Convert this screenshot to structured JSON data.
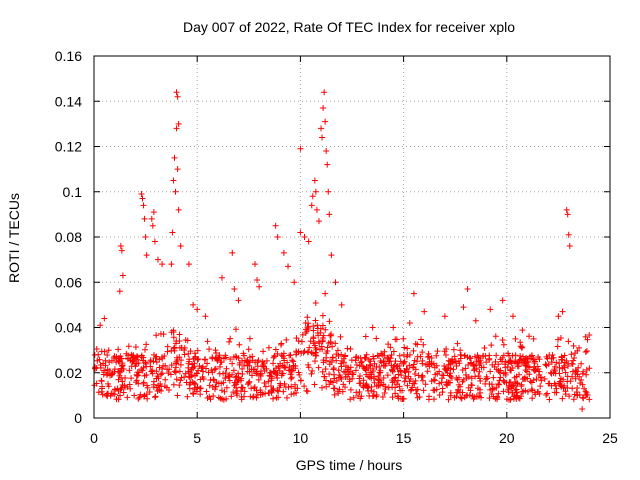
{
  "chart_data": {
    "type": "scatter",
    "title": "Day 007 of 2022, Rate Of TEC Index for receiver xplo",
    "xlabel": "GPS time / hours",
    "ylabel": "ROTI / TECUs",
    "xlim": [
      0,
      25
    ],
    "ylim": [
      0,
      0.16
    ],
    "x_ticks": [
      0,
      5,
      10,
      15,
      20,
      25
    ],
    "x_tick_labels": [
      "0",
      "5",
      "10",
      "15",
      "20",
      "25"
    ],
    "y_ticks": [
      0,
      0.02,
      0.04,
      0.06,
      0.08,
      0.1,
      0.12,
      0.14,
      0.16
    ],
    "y_tick_labels": [
      "0",
      "0.02",
      "0.04",
      "0.06",
      "0.08",
      "0.1",
      "0.12",
      "0.14",
      "0.16"
    ],
    "grid": true,
    "legend": "none",
    "marker": "+",
    "marker_color": "#ff0000",
    "data_x_range": [
      0,
      24
    ],
    "baseline_band": [
      0.008,
      0.028
    ],
    "points": [
      [
        4.0,
        0.144
      ],
      [
        4.05,
        0.142
      ],
      [
        4.1,
        0.13
      ],
      [
        4.0,
        0.128
      ],
      [
        3.9,
        0.115
      ],
      [
        4.05,
        0.11
      ],
      [
        3.85,
        0.105
      ],
      [
        3.95,
        0.1
      ],
      [
        4.1,
        0.092
      ],
      [
        3.8,
        0.082
      ],
      [
        4.2,
        0.076
      ],
      [
        3.75,
        0.068
      ],
      [
        2.3,
        0.099
      ],
      [
        2.35,
        0.097
      ],
      [
        2.4,
        0.094
      ],
      [
        2.45,
        0.088
      ],
      [
        2.5,
        0.08
      ],
      [
        2.55,
        0.072
      ],
      [
        2.9,
        0.091
      ],
      [
        2.8,
        0.088
      ],
      [
        2.85,
        0.085
      ],
      [
        2.95,
        0.078
      ],
      [
        3.1,
        0.07
      ],
      [
        3.3,
        0.068
      ],
      [
        1.3,
        0.076
      ],
      [
        1.35,
        0.074
      ],
      [
        1.4,
        0.063
      ],
      [
        1.25,
        0.056
      ],
      [
        0.3,
        0.041
      ],
      [
        0.5,
        0.044
      ],
      [
        4.6,
        0.068
      ],
      [
        4.8,
        0.05
      ],
      [
        5.0,
        0.048
      ],
      [
        5.4,
        0.045
      ],
      [
        6.2,
        0.062
      ],
      [
        6.7,
        0.073
      ],
      [
        6.8,
        0.057
      ],
      [
        7.0,
        0.052
      ],
      [
        7.8,
        0.068
      ],
      [
        7.9,
        0.061
      ],
      [
        8.0,
        0.058
      ],
      [
        8.8,
        0.085
      ],
      [
        8.9,
        0.08
      ],
      [
        9.2,
        0.073
      ],
      [
        9.4,
        0.067
      ],
      [
        9.7,
        0.06
      ],
      [
        10.0,
        0.119
      ],
      [
        10.0,
        0.082
      ],
      [
        10.2,
        0.08
      ],
      [
        10.4,
        0.078
      ],
      [
        10.55,
        0.094
      ],
      [
        10.6,
        0.098
      ],
      [
        10.7,
        0.105
      ],
      [
        10.75,
        0.1
      ],
      [
        10.8,
        0.092
      ],
      [
        10.9,
        0.087
      ],
      [
        11.0,
        0.128
      ],
      [
        11.05,
        0.124
      ],
      [
        11.1,
        0.137
      ],
      [
        11.15,
        0.144
      ],
      [
        11.2,
        0.131
      ],
      [
        11.25,
        0.118
      ],
      [
        11.3,
        0.112
      ],
      [
        11.35,
        0.1
      ],
      [
        11.4,
        0.09
      ],
      [
        11.5,
        0.072
      ],
      [
        11.7,
        0.06
      ],
      [
        12.0,
        0.05
      ],
      [
        13.5,
        0.04
      ],
      [
        14.5,
        0.04
      ],
      [
        15.3,
        0.042
      ],
      [
        15.5,
        0.055
      ],
      [
        16.0,
        0.047
      ],
      [
        17.0,
        0.045
      ],
      [
        17.9,
        0.049
      ],
      [
        18.1,
        0.057
      ],
      [
        18.5,
        0.043
      ],
      [
        19.2,
        0.048
      ],
      [
        19.8,
        0.052
      ],
      [
        20.3,
        0.045
      ],
      [
        21.3,
        0.035
      ],
      [
        22.5,
        0.045
      ],
      [
        22.7,
        0.047
      ],
      [
        22.9,
        0.092
      ],
      [
        22.95,
        0.09
      ],
      [
        23.0,
        0.081
      ],
      [
        23.05,
        0.076
      ],
      [
        23.5,
        0.031
      ],
      [
        23.6,
        0.024
      ],
      [
        23.65,
        0.004
      ],
      [
        24.0,
        0.022
      ]
    ]
  }
}
